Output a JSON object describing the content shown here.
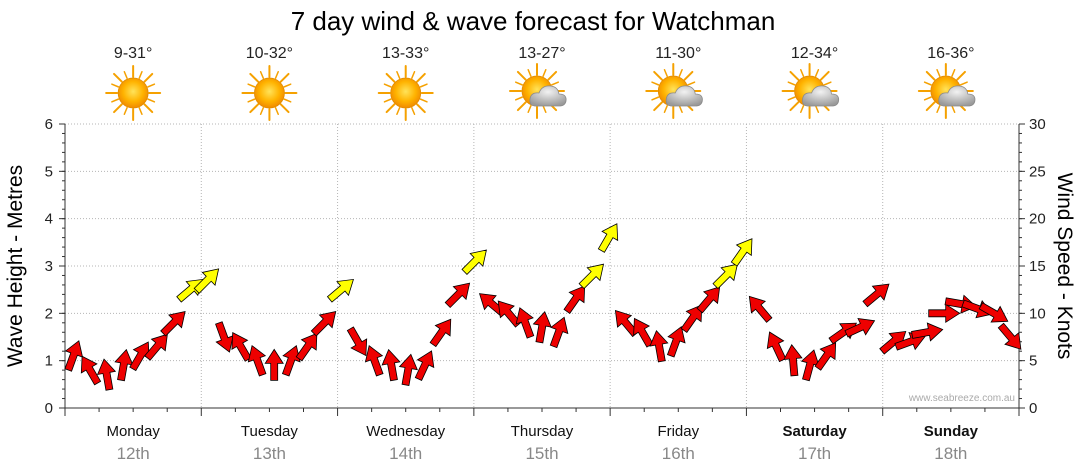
{
  "chart_data": {
    "type": "line",
    "title": "7 day wind & wave forecast for Watchman",
    "ylabel_left": "Wave Height - Metres",
    "ylabel_right": "Wind Speed - Knots",
    "ylim_left": [
      0,
      6
    ],
    "ylim_right": [
      0,
      30
    ],
    "yticks_left": [
      "0",
      "1",
      "2",
      "3",
      "4",
      "5",
      "6"
    ],
    "yticks_right": [
      "0",
      "5",
      "10",
      "15",
      "20",
      "25",
      "30"
    ],
    "days": [
      {
        "name": "Monday",
        "date": "12th",
        "temp": "9-31°",
        "weather": "sunny",
        "bold": false
      },
      {
        "name": "Tuesday",
        "date": "13th",
        "temp": "10-32°",
        "weather": "sunny",
        "bold": false
      },
      {
        "name": "Wednesday",
        "date": "14th",
        "temp": "13-33°",
        "weather": "sunny",
        "bold": false
      },
      {
        "name": "Thursday",
        "date": "15th",
        "temp": "13-27°",
        "weather": "partly-cloudy",
        "bold": false
      },
      {
        "name": "Friday",
        "date": "16th",
        "temp": "11-30°",
        "weather": "partly-cloudy",
        "bold": false
      },
      {
        "name": "Saturday",
        "date": "17th",
        "temp": "12-34°",
        "weather": "partly-cloudy",
        "bold": true
      },
      {
        "name": "Sunday",
        "date": "18th",
        "temp": "16-36°",
        "weather": "partly-cloudy",
        "bold": true
      }
    ],
    "wind_series": {
      "name": "Wind Speed",
      "unit": "knots",
      "samples_per_day": 8,
      "strong_threshold": 12.5,
      "values": [
        5.5,
        4,
        3.5,
        4.5,
        5.5,
        6.5,
        9,
        12.5,
        13.5,
        7.5,
        6.5,
        5,
        4.5,
        5,
        6.5,
        9,
        12.5,
        7,
        5,
        4.5,
        4,
        4.5,
        8,
        12,
        15.5,
        11,
        10,
        9,
        8.5,
        8,
        11.5,
        14,
        18,
        9,
        8,
        6.5,
        7,
        9.5,
        11.5,
        14,
        16.5,
        10.5,
        6.5,
        5,
        4.5,
        5.5,
        8,
        8.5,
        12,
        7,
        7,
        8,
        10,
        11,
        10.5,
        10,
        7.5
      ],
      "directions": [
        200,
        150,
        170,
        190,
        210,
        220,
        225,
        230,
        225,
        340,
        150,
        160,
        180,
        200,
        215,
        225,
        230,
        330,
        160,
        170,
        190,
        205,
        215,
        225,
        225,
        130,
        140,
        160,
        190,
        200,
        215,
        225,
        210,
        140,
        150,
        170,
        200,
        215,
        220,
        225,
        215,
        140,
        155,
        175,
        195,
        215,
        235,
        245,
        230,
        230,
        250,
        260,
        270,
        280,
        290,
        300,
        320
      ]
    },
    "watermark": "www.seabreeze.com.au"
  }
}
